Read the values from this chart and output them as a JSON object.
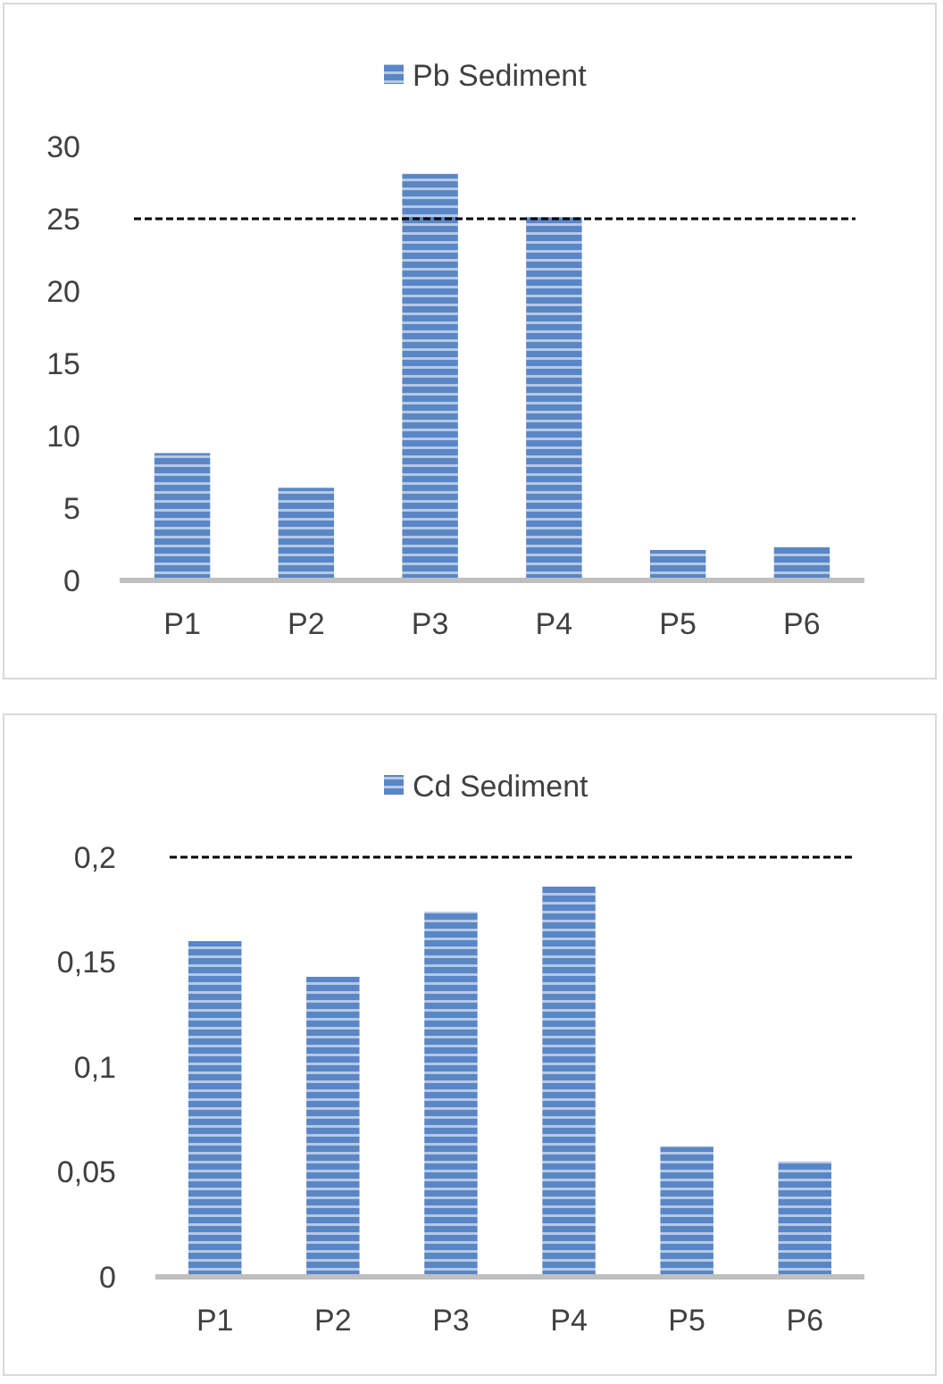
{
  "chart_data": [
    {
      "type": "bar",
      "categories": [
        "P1",
        "P2",
        "P3",
        "P4",
        "P5",
        "P6"
      ],
      "series": [
        {
          "name": "Pb Sediment",
          "color": "#5a86c5",
          "values": [
            8.8,
            6.4,
            28.1,
            25.1,
            2.1,
            2.3
          ]
        }
      ],
      "ylim": [
        0,
        30
      ],
      "yticks": [
        0,
        5,
        10,
        15,
        20,
        25,
        30
      ],
      "legend": "top",
      "grid": false,
      "ref_lines": [
        {
          "axis": "y",
          "value": 25,
          "color": "#000000",
          "line_style": "dashed"
        }
      ]
    },
    {
      "type": "bar",
      "categories": [
        "P1",
        "P2",
        "P3",
        "P4",
        "P5",
        "P6"
      ],
      "series": [
        {
          "name": "Cd Sediment",
          "color": "#5a86c5",
          "values": [
            0.16,
            0.143,
            0.174,
            0.186,
            0.062,
            0.055
          ]
        }
      ],
      "ylim": [
        0,
        0.2
      ],
      "yticks": [
        {
          "value": 0,
          "label": "0"
        },
        {
          "value": 0.05,
          "label": "0,05"
        },
        {
          "value": 0.1,
          "label": "0,1"
        },
        {
          "value": 0.15,
          "label": "0,15"
        },
        {
          "value": 0.2,
          "label": "0,2"
        }
      ],
      "legend": "top",
      "grid": false,
      "ref_lines": [
        {
          "axis": "y",
          "value": 0.2,
          "color": "#000000",
          "line_style": "dashed"
        }
      ]
    }
  ]
}
